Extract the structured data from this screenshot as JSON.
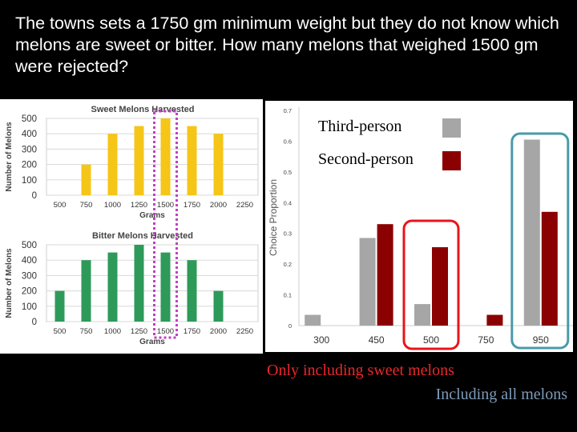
{
  "question": "The towns sets a 1750 gm minimum weight but they do not know which melons are sweet or bitter.  How many melons that weighed 1500 gm were rejected?",
  "captions": {
    "sweet_only": "Only including sweet melons",
    "all_melons": "Including all melons"
  },
  "colors": {
    "sweet_bar": "#f5c518",
    "bitter_bar": "#2e9a5a",
    "third_person": "#a6a6a6",
    "second_person": "#8b0000",
    "highlight_dotted": "#c040c0",
    "highlight_red": "#e8141a",
    "highlight_teal": "#4a9aa8"
  },
  "chart_data": [
    {
      "type": "bar",
      "title": "Sweet Melons Harvested",
      "xlabel": "Grams",
      "ylabel": "Number of Melons",
      "categories": [
        "500",
        "750",
        "1000",
        "1250",
        "1500",
        "1750",
        "2000",
        "2250"
      ],
      "values": [
        0,
        200,
        400,
        450,
        500,
        450,
        400,
        0
      ],
      "yticks": [
        "0",
        "100",
        "200",
        "300",
        "400",
        "500"
      ],
      "ylim": [
        0,
        500
      ],
      "highlight_category": "1500"
    },
    {
      "type": "bar",
      "title": "Bitter Melons Harvested",
      "xlabel": "Grams",
      "ylabel": "Number of Melons",
      "categories": [
        "500",
        "750",
        "1000",
        "1250",
        "1500",
        "1750",
        "2000",
        "2250"
      ],
      "values": [
        200,
        400,
        450,
        500,
        450,
        400,
        200,
        0
      ],
      "yticks": [
        "0",
        "100",
        "200",
        "300",
        "400",
        "500"
      ],
      "ylim": [
        0,
        500
      ],
      "highlight_category": "1500"
    },
    {
      "type": "bar",
      "ylabel": "Choice Proportion",
      "categories": [
        "300",
        "450",
        "500",
        "750",
        "950"
      ],
      "series": [
        {
          "name": "Third-person",
          "values": [
            0.035,
            0.285,
            0.07,
            0.0,
            0.605
          ]
        },
        {
          "name": "Second-person",
          "values": [
            0.0,
            0.33,
            0.255,
            0.035,
            0.37
          ]
        }
      ],
      "yticks": [
        "0",
        "0.1",
        "0.2",
        "0.3",
        "0.4",
        "0.5",
        "0.6",
        "0.7"
      ],
      "ylim": [
        0,
        0.7
      ],
      "legend": "top-left",
      "highlight_red": "500",
      "highlight_teal": "950"
    }
  ]
}
